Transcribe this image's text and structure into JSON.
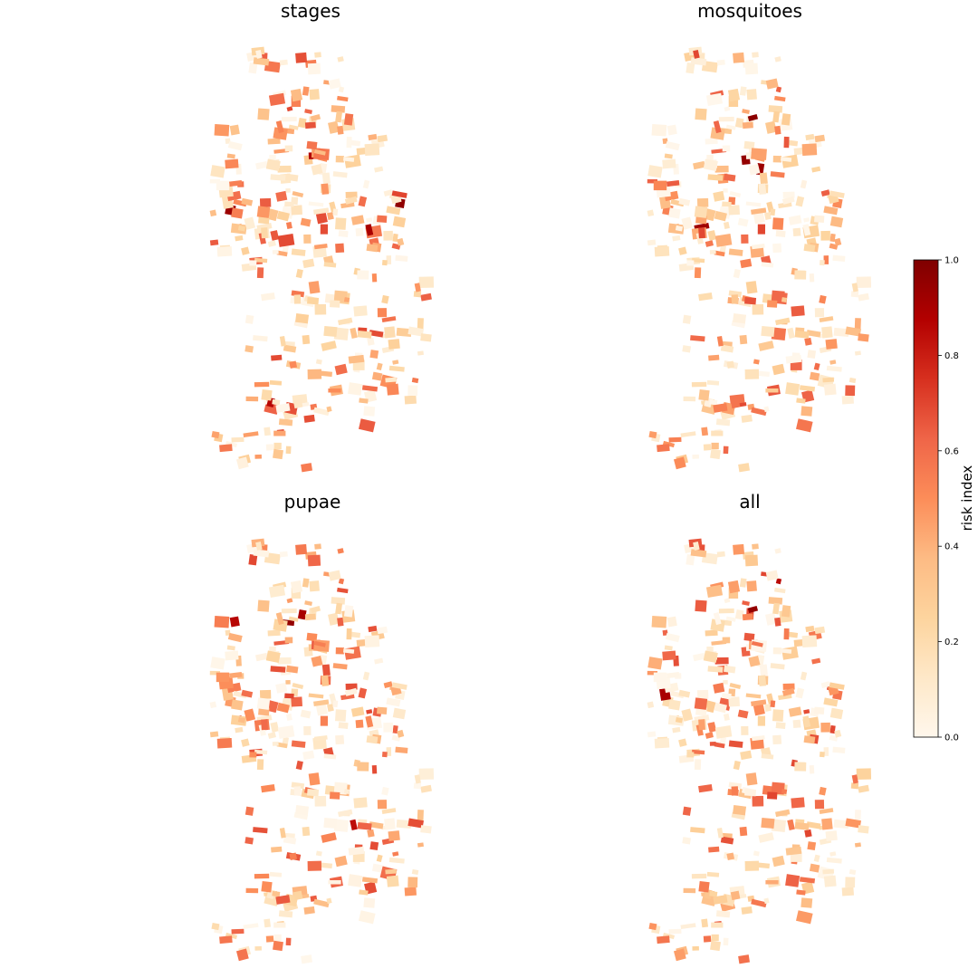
{
  "chart_data": {
    "type": "heatmap",
    "subtype": "choropleth-map",
    "colormap": "OrRd",
    "colormap_stops": [
      "#fff7ec",
      "#fee8c8",
      "#fdd49e",
      "#fdbb84",
      "#fc8d59",
      "#ef6548",
      "#d7301f",
      "#b30000",
      "#7f0000"
    ],
    "panels": [
      {
        "title": "stages",
        "seed": 11,
        "hot": [
          0.96,
          0.93,
          0.9,
          0.88,
          0.86
        ]
      },
      {
        "title": "mosquitoes",
        "seed": 23,
        "hot": [
          0.97,
          0.95,
          0.93,
          0.92
        ]
      },
      {
        "title": "pupae",
        "seed": 37,
        "hot": [
          0.95,
          0.9,
          0.86,
          0.84
        ]
      },
      {
        "title": "all",
        "seed": 41,
        "hot": [
          0.95,
          0.9,
          0.85
        ]
      }
    ],
    "colorbar": {
      "label": "risk index",
      "range": [
        0,
        1
      ],
      "ticks": [
        "0.0",
        "0.2",
        "0.4",
        "0.6",
        "0.8",
        "1.0"
      ]
    }
  }
}
